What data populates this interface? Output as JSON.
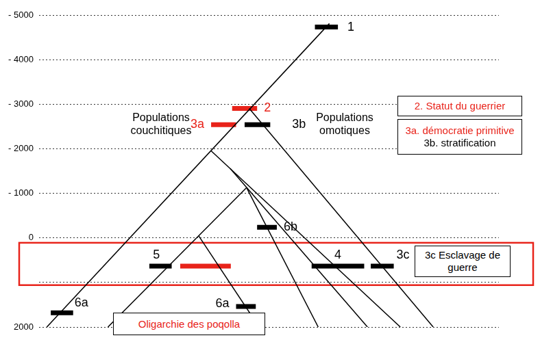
{
  "chart_data": {
    "type": "tree",
    "xlim": [
      30,
      730
    ],
    "ylim": [
      -5000,
      2000
    ],
    "yticks": [
      {
        "value": -5000,
        "label": "- 5000"
      },
      {
        "value": -4000,
        "label": "- 4000"
      },
      {
        "value": -3000,
        "label": "- 3000"
      },
      {
        "value": -2000,
        "label": "- 2000"
      },
      {
        "value": -1000,
        "label": "- 1000"
      },
      0,
      {
        "value": 1000,
        "label": null
      },
      2000
    ],
    "grid": true,
    "tick_labels": "y",
    "branches": [
      {
        "x": [
          472,
          42
        ],
        "y": [
          -4810,
          2000
        ]
      },
      {
        "x": [
          350,
          630
        ],
        "y": [
          -2905,
          2000
        ]
      },
      {
        "x": [
          292,
          580
        ],
        "y": [
          -1952,
          2000
        ]
      },
      {
        "x": [
          321,
          530
        ],
        "y": [
          -1556,
          2000
        ]
      },
      {
        "x": [
          346,
          135
        ],
        "y": [
          -1127,
          2000
        ]
      },
      {
        "x": [
          346,
          455
        ],
        "y": [
          -1127,
          2000
        ]
      },
      {
        "x": [
          273,
          365
        ],
        "y": [
          -48,
          2000
        ]
      }
    ],
    "events": [
      {
        "label": "1",
        "x": [
          450,
          485
        ],
        "y": -4730,
        "color": "#000000"
      },
      {
        "label": "2",
        "x": [
          324,
          362
        ],
        "y": -2905,
        "color": "#e8231a"
      },
      {
        "label": "3a",
        "x": [
          292,
          330
        ],
        "y": -2540,
        "color": "#e8231a"
      },
      {
        "label": "3b",
        "x": [
          343,
          382
        ],
        "y": -2540,
        "color": "#000000"
      },
      {
        "label": "4",
        "x": [
          445,
          525
        ],
        "y": 635,
        "color": "#000000"
      },
      {
        "label": "3c",
        "x": [
          535,
          570
        ],
        "y": 635,
        "color": "#000000"
      },
      {
        "label": "5",
        "x": [
          198,
          232
        ],
        "y": 635,
        "color": "#000000"
      },
      {
        "label": null,
        "x": [
          245,
          322
        ],
        "y": 635,
        "color": "#e8231a"
      },
      {
        "label": "6b",
        "x": [
          362,
          392
        ],
        "y": -238,
        "color": "#000000"
      },
      {
        "label": "6a",
        "x": [
          330,
          360
        ],
        "y": 1540,
        "color": "#000000"
      },
      {
        "label": "6a",
        "x": [
          48,
          82
        ],
        "y": 1683,
        "color": "#000000"
      }
    ],
    "highlight_years": [
      110,
      1060
    ],
    "highlight_color": "#e8231a",
    "groups": [
      "Populations couchitiques",
      "Populations omotiques"
    ],
    "notes": [
      {
        "lines": [
          {
            "text": "2. Statut du guerrier",
            "color": "#e8231a"
          }
        ]
      },
      {
        "lines": [
          {
            "text": "3a. démocratie primitive",
            "color": "#e8231a"
          },
          {
            "text": "3b. stratification",
            "color": "#000000"
          }
        ]
      },
      {
        "lines": [
          {
            "text": "3c Esclavage de guerre",
            "color": "#000000"
          }
        ]
      },
      {
        "lines": [
          {
            "text": "Oligarchie des poqolla",
            "color": "#e8231a"
          }
        ]
      }
    ]
  }
}
